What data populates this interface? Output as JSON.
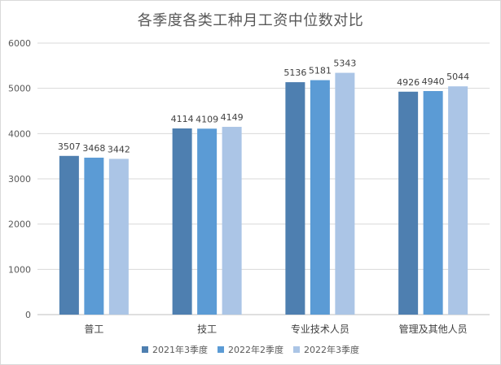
{
  "chart_data": {
    "type": "bar",
    "title": "各季度各类工种月工资中位数对比",
    "categories": [
      "普工",
      "技工",
      "专业技术人员",
      "管理及其他人员"
    ],
    "series": [
      {
        "name": "2021年3季度",
        "color": "#4e7fb0",
        "values": [
          3507,
          4114,
          5136,
          4926
        ]
      },
      {
        "name": "2022年2季度",
        "color": "#5b9bd5",
        "values": [
          3468,
          4109,
          5181,
          4940
        ]
      },
      {
        "name": "2022年3季度",
        "color": "#abc5e6",
        "values": [
          3442,
          4149,
          5343,
          5044
        ]
      }
    ],
    "yticks": [
      "0",
      "1000",
      "2000",
      "3000",
      "4000",
      "5000",
      "6000"
    ],
    "ylim": [
      0,
      6000
    ],
    "grid": true,
    "legend_position": "bottom"
  }
}
